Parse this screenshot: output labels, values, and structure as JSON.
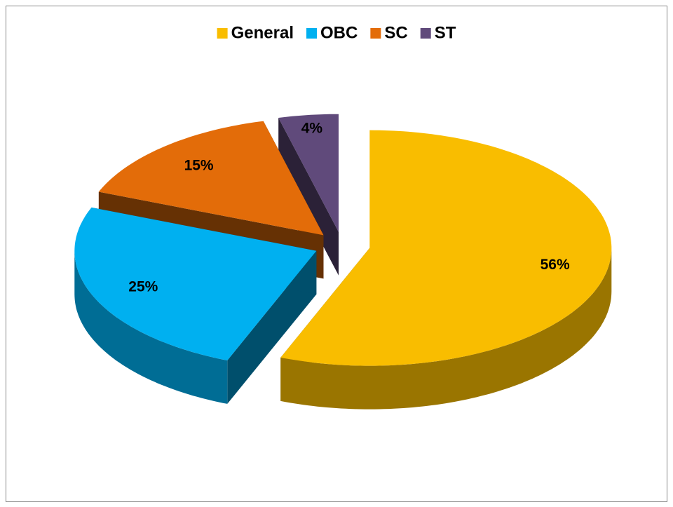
{
  "chart_data": {
    "type": "pie",
    "categories": [
      "General",
      "OBC",
      "SC",
      "ST"
    ],
    "values": [
      56,
      25,
      15,
      4
    ],
    "value_labels": [
      "56%",
      "25%",
      "15%",
      "4%"
    ],
    "colors": [
      "#F9BD00",
      "#00B0F0",
      "#E36C09",
      "#604A7B"
    ],
    "legend": "top"
  }
}
